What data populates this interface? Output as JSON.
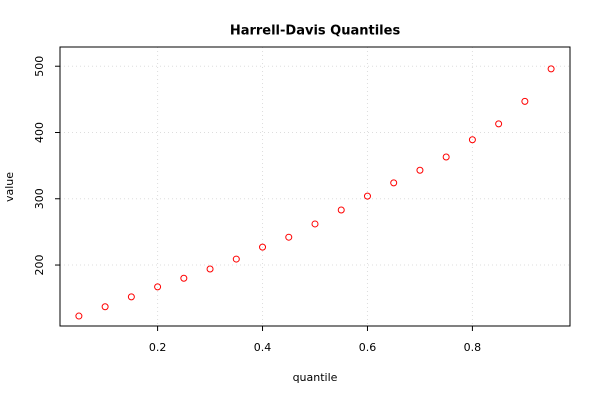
{
  "chart_data": {
    "type": "scatter",
    "title": "Harrell-Davis Quantiles",
    "x_label": "quantile",
    "y_label": "value",
    "x": [
      0.05,
      0.1,
      0.15,
      0.2,
      0.25,
      0.3,
      0.35,
      0.4,
      0.45,
      0.5,
      0.55,
      0.6,
      0.65,
      0.7,
      0.75,
      0.8,
      0.85,
      0.9,
      0.95
    ],
    "values": [
      123,
      137,
      152,
      167,
      180,
      194,
      209,
      227,
      242,
      262,
      283,
      304,
      324,
      343,
      363,
      389,
      413,
      447,
      496
    ],
    "color": "#ff0000",
    "xlim": [
      0.014,
      0.986
    ],
    "ylim": [
      108,
      529
    ],
    "xticks": [
      0.2,
      0.4,
      0.6,
      0.8
    ],
    "yticks": [
      200,
      300,
      400,
      500
    ],
    "grid": true
  }
}
